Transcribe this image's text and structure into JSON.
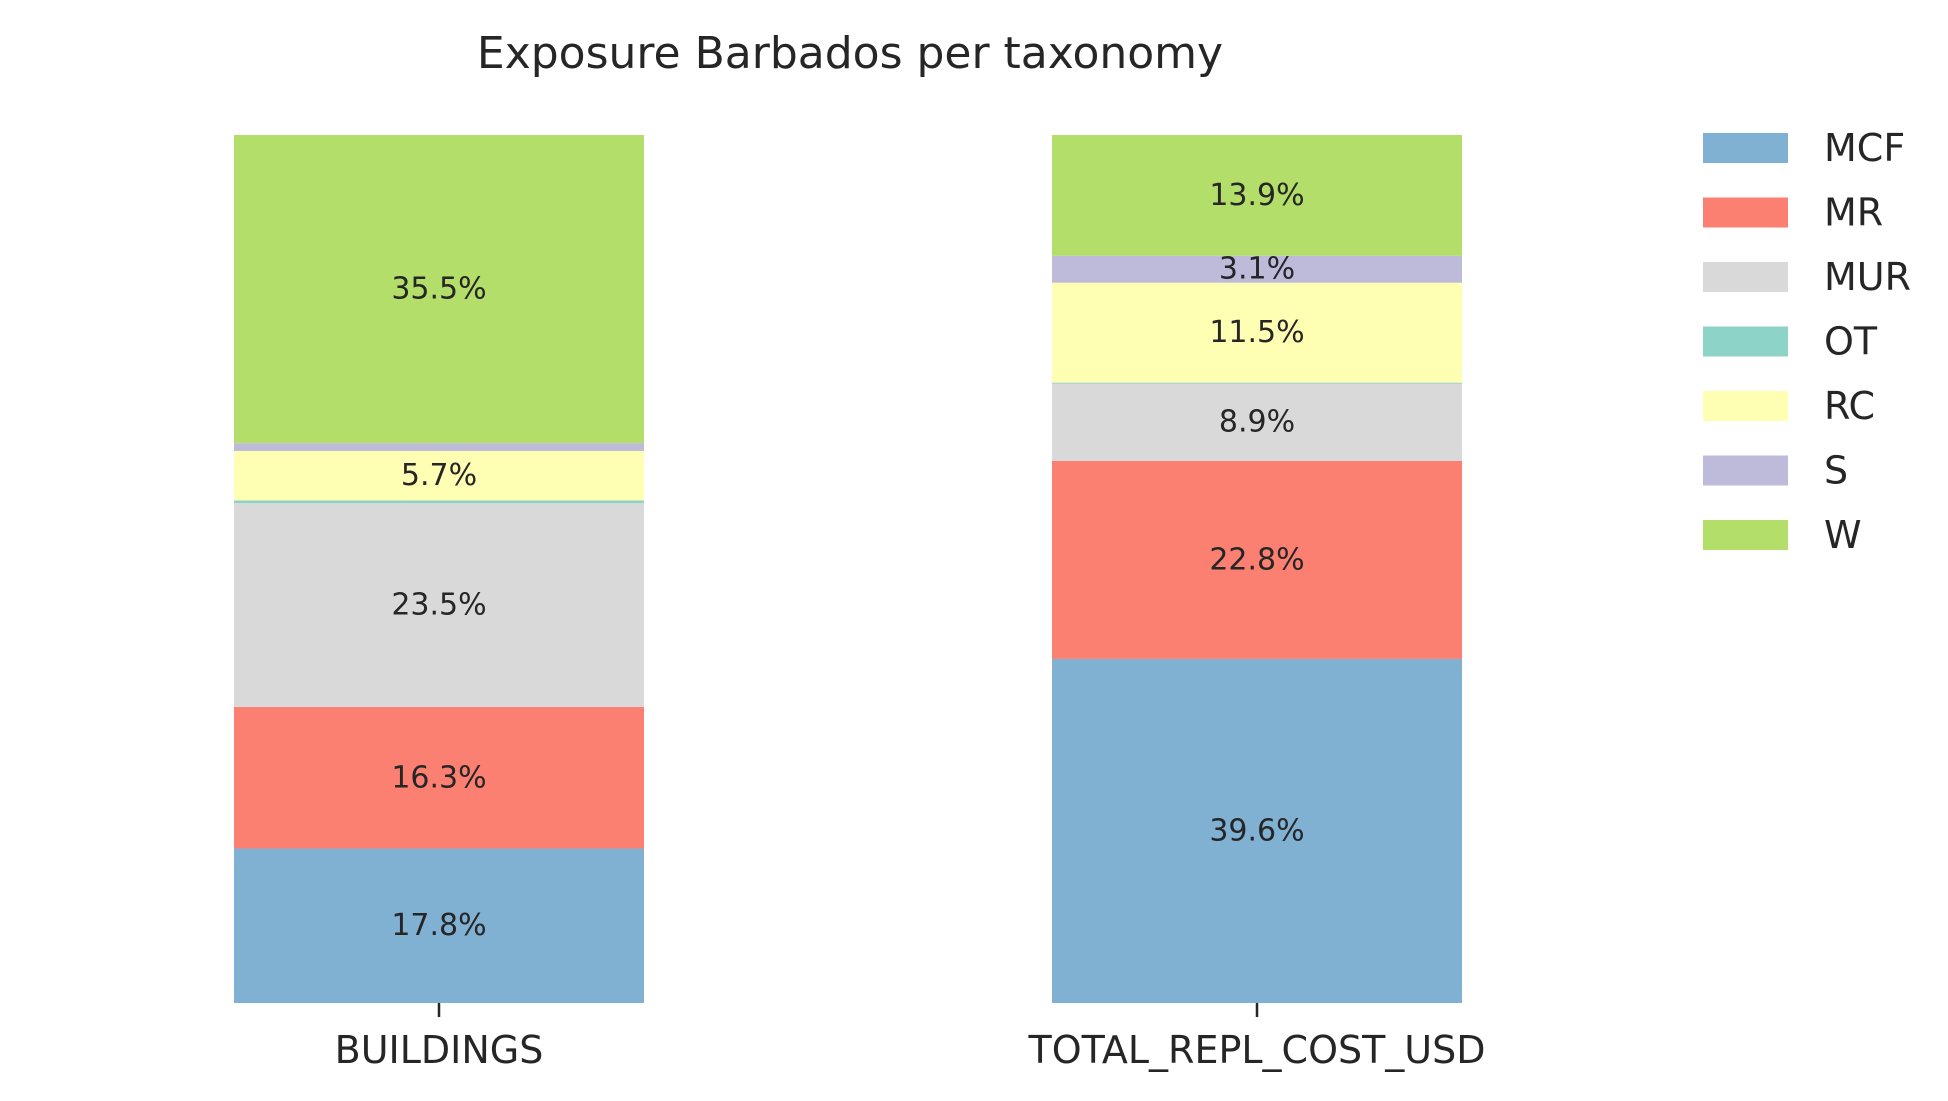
{
  "chart_data": {
    "type": "bar",
    "stacked": true,
    "normalized": true,
    "title": "Exposure Barbados per taxonomy",
    "xlabel": "",
    "ylabel": "",
    "ylim": [
      0,
      100
    ],
    "grid": false,
    "legend_position": "top-right",
    "categories": [
      "BUILDINGS",
      "TOTAL_REPL_COST_USD"
    ],
    "series": [
      {
        "name": "MCF",
        "color": "#80b1d3",
        "values": [
          17.8,
          39.6
        ],
        "labels": [
          "17.8%",
          "39.6%"
        ]
      },
      {
        "name": "MR",
        "color": "#fb8072",
        "values": [
          16.3,
          22.8
        ],
        "labels": [
          "16.3%",
          "22.8%"
        ]
      },
      {
        "name": "MUR",
        "color": "#d9d9d9",
        "values": [
          23.5,
          8.9
        ],
        "labels": [
          "23.5%",
          "8.9%"
        ]
      },
      {
        "name": "OT",
        "color": "#8dd3c7",
        "values": [
          0.3,
          0.1
        ],
        "labels": [
          "",
          ""
        ]
      },
      {
        "name": "RC",
        "color": "#ffffb3",
        "values": [
          5.7,
          11.5
        ],
        "labels": [
          "5.7%",
          "11.5%"
        ]
      },
      {
        "name": "S",
        "color": "#bebada",
        "values": [
          0.9,
          3.1
        ],
        "labels": [
          "",
          "3.1%"
        ]
      },
      {
        "name": "W",
        "color": "#b3de69",
        "values": [
          35.5,
          13.9
        ],
        "labels": [
          "35.5%",
          "13.9%"
        ]
      }
    ]
  }
}
